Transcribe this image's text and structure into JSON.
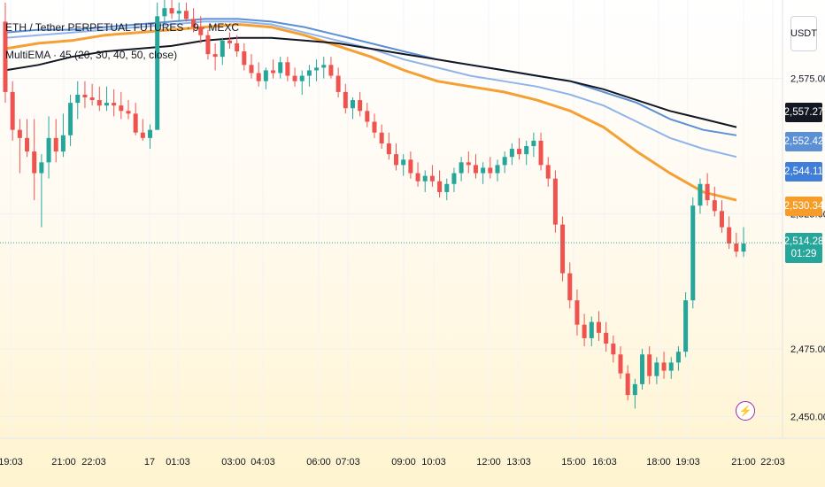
{
  "header": {
    "title": "ETH / Tether PERPETUAL FUTURES · 9 · MEXC",
    "indicator": "MultiEMA · 45 (20, 30, 40, 50, close)"
  },
  "currency_button": "USDT",
  "countdown": "01:29",
  "colors": {
    "up": "#26a69a",
    "down": "#ef5350",
    "ema_black": "#131722",
    "ema_blue_dark": "#5b8fd6",
    "ema_blue_light": "#8fb4ea",
    "ema_orange": "#f5a034",
    "current_line": "#26a69a"
  },
  "price_tags": [
    {
      "value": "2,557.27",
      "color": "#131722"
    },
    {
      "value": "2,552.42",
      "color": "#5b8fd6"
    },
    {
      "value": "2,544.11",
      "color": "#3f7fd9"
    },
    {
      "value": "2,530.34",
      "color": "#f59d28"
    }
  ],
  "current_price": {
    "value": "2,514.28",
    "color": "#26a69a"
  },
  "chart_data": {
    "type": "candlestick",
    "title": "ETH / Tether PERPETUAL FUTURES · 9 · MEXC",
    "y_ticks": [
      "2,575.00",
      "2,525.00",
      "2,475.00",
      "2,450.00"
    ],
    "x_ticks": [
      "19:03",
      "21:00",
      "22:03",
      "17",
      "01:03",
      "03:00",
      "04:03",
      "06:00",
      "07:03",
      "09:00",
      "10:03",
      "12:00",
      "13:03",
      "15:00",
      "16:03",
      "18:00",
      "19:03",
      "21:00",
      "22:03"
    ],
    "ylim": [
      2442,
      2604
    ],
    "last_price": 2514.28,
    "candles": [
      [
        2596,
        2603,
        2566,
        2570
      ],
      [
        2570,
        2574,
        2552,
        2556
      ],
      [
        2556,
        2560,
        2540,
        2553
      ],
      [
        2553,
        2560,
        2546,
        2548
      ],
      [
        2548,
        2560,
        2530,
        2540
      ],
      [
        2540,
        2547,
        2520,
        2544
      ],
      [
        2544,
        2561,
        2538,
        2553
      ],
      [
        2553,
        2560,
        2544,
        2548
      ],
      [
        2548,
        2562,
        2546,
        2554
      ],
      [
        2554,
        2569,
        2550,
        2566
      ],
      [
        2566,
        2574,
        2560,
        2569
      ],
      [
        2569,
        2574,
        2564,
        2568
      ],
      [
        2568,
        2573,
        2565,
        2567
      ],
      [
        2567,
        2572,
        2563,
        2565
      ],
      [
        2565,
        2572,
        2563,
        2566
      ],
      [
        2566,
        2571,
        2561,
        2565
      ],
      [
        2565,
        2570,
        2560,
        2563
      ],
      [
        2563,
        2567,
        2560,
        2562
      ],
      [
        2562,
        2566,
        2554,
        2555
      ],
      [
        2555,
        2560,
        2552,
        2553
      ],
      [
        2553,
        2558,
        2549,
        2556
      ],
      [
        2556,
        2603,
        2556,
        2598
      ],
      [
        2598,
        2604,
        2595,
        2601
      ],
      [
        2601,
        2604,
        2597,
        2599
      ],
      [
        2599,
        2603,
        2596,
        2600
      ],
      [
        2600,
        2603,
        2596,
        2597
      ],
      [
        2597,
        2601,
        2592,
        2594
      ],
      [
        2594,
        2598,
        2588,
        2591
      ],
      [
        2591,
        2593,
        2582,
        2584
      ],
      [
        2584,
        2588,
        2578,
        2583
      ],
      [
        2583,
        2590,
        2580,
        2589
      ],
      [
        2589,
        2592,
        2586,
        2588
      ],
      [
        2588,
        2591,
        2583,
        2585
      ],
      [
        2585,
        2588,
        2578,
        2580
      ],
      [
        2580,
        2584,
        2575,
        2577
      ],
      [
        2577,
        2581,
        2572,
        2574
      ],
      [
        2574,
        2579,
        2571,
        2578
      ],
      [
        2578,
        2582,
        2575,
        2577
      ],
      [
        2577,
        2583,
        2575,
        2581
      ],
      [
        2581,
        2583,
        2574,
        2576
      ],
      [
        2576,
        2579,
        2572,
        2574
      ],
      [
        2574,
        2578,
        2569,
        2576
      ],
      [
        2576,
        2580,
        2572,
        2578
      ],
      [
        2578,
        2582,
        2574,
        2579
      ],
      [
        2579,
        2583,
        2575,
        2580
      ],
      [
        2580,
        2583,
        2575,
        2576
      ],
      [
        2576,
        2579,
        2568,
        2570
      ],
      [
        2570,
        2573,
        2562,
        2564
      ],
      [
        2564,
        2568,
        2560,
        2567
      ],
      [
        2567,
        2570,
        2561,
        2563
      ],
      [
        2563,
        2566,
        2557,
        2559
      ],
      [
        2559,
        2562,
        2553,
        2555
      ],
      [
        2555,
        2558,
        2549,
        2551
      ],
      [
        2551,
        2555,
        2545,
        2547
      ],
      [
        2547,
        2551,
        2541,
        2543
      ],
      [
        2543,
        2547,
        2539,
        2545
      ],
      [
        2545,
        2548,
        2538,
        2540
      ],
      [
        2540,
        2544,
        2535,
        2537
      ],
      [
        2537,
        2541,
        2533,
        2539
      ],
      [
        2539,
        2543,
        2535,
        2537
      ],
      [
        2537,
        2541,
        2531,
        2533
      ],
      [
        2533,
        2538,
        2530,
        2536
      ],
      [
        2536,
        2542,
        2533,
        2540
      ],
      [
        2540,
        2546,
        2537,
        2544
      ],
      [
        2544,
        2548,
        2540,
        2543
      ],
      [
        2543,
        2547,
        2538,
        2540
      ],
      [
        2540,
        2544,
        2536,
        2542
      ],
      [
        2542,
        2546,
        2538,
        2540
      ],
      [
        2540,
        2545,
        2537,
        2543
      ],
      [
        2543,
        2548,
        2540,
        2546
      ],
      [
        2546,
        2551,
        2543,
        2549
      ],
      [
        2549,
        2553,
        2545,
        2547
      ],
      [
        2547,
        2552,
        2543,
        2550
      ],
      [
        2550,
        2555,
        2546,
        2552
      ],
      [
        2552,
        2555,
        2541,
        2543
      ],
      [
        2543,
        2546,
        2535,
        2538
      ],
      [
        2538,
        2541,
        2518,
        2521
      ],
      [
        2521,
        2524,
        2500,
        2503
      ],
      [
        2503,
        2507,
        2490,
        2493
      ],
      [
        2493,
        2497,
        2480,
        2484
      ],
      [
        2484,
        2488,
        2476,
        2479
      ],
      [
        2479,
        2487,
        2476,
        2485
      ],
      [
        2485,
        2489,
        2478,
        2481
      ],
      [
        2481,
        2485,
        2474,
        2477
      ],
      [
        2477,
        2480,
        2470,
        2473
      ],
      [
        2473,
        2476,
        2464,
        2466
      ],
      [
        2466,
        2469,
        2456,
        2458
      ],
      [
        2458,
        2464,
        2453,
        2462
      ],
      [
        2462,
        2475,
        2460,
        2473
      ],
      [
        2473,
        2476,
        2462,
        2465
      ],
      [
        2465,
        2472,
        2462,
        2470
      ],
      [
        2470,
        2474,
        2464,
        2467
      ],
      [
        2467,
        2472,
        2464,
        2470
      ],
      [
        2470,
        2476,
        2467,
        2474
      ],
      [
        2474,
        2496,
        2472,
        2493
      ],
      [
        2493,
        2531,
        2490,
        2528
      ],
      [
        2528,
        2538,
        2525,
        2536
      ],
      [
        2536,
        2540,
        2528,
        2530
      ],
      [
        2530,
        2535,
        2524,
        2526
      ],
      [
        2526,
        2530,
        2518,
        2520
      ],
      [
        2520,
        2524,
        2512,
        2514
      ],
      [
        2514,
        2518,
        2509,
        2511
      ],
      [
        2511,
        2520,
        2509,
        2514
      ]
    ],
    "ema_series": [
      {
        "name": "EMA 20",
        "color": "#f5a034",
        "values": [
          2586,
          2588,
          2589,
          2591,
          2592,
          2593,
          2594,
          2595,
          2594,
          2591,
          2587,
          2583,
          2578,
          2574,
          2572,
          2570,
          2567,
          2563,
          2557,
          2548,
          2540,
          2533,
          2530
        ]
      },
      {
        "name": "EMA 30",
        "color": "#8fb4ea",
        "values": [
          2590,
          2591,
          2592,
          2593,
          2594,
          2595,
          2596,
          2596,
          2595,
          2592,
          2589,
          2586,
          2582,
          2579,
          2576,
          2574,
          2572,
          2569,
          2565,
          2559,
          2553,
          2549,
          2546
        ]
      },
      {
        "name": "EMA 40",
        "color": "#5b8fd6",
        "values": [
          2592,
          2593,
          2593,
          2594,
          2595,
          2596,
          2597,
          2597,
          2596,
          2594,
          2591,
          2588,
          2585,
          2582,
          2580,
          2578,
          2576,
          2574,
          2570,
          2566,
          2560,
          2556,
          2554
        ]
      },
      {
        "name": "EMA 50",
        "color": "#131722",
        "values": [
          2578,
          2580,
          2583,
          2585,
          2586,
          2587,
          2589,
          2590,
          2590,
          2589,
          2588,
          2586,
          2584,
          2582,
          2580,
          2578,
          2576,
          2574,
          2571,
          2567,
          2563,
          2560,
          2557
        ]
      }
    ]
  }
}
